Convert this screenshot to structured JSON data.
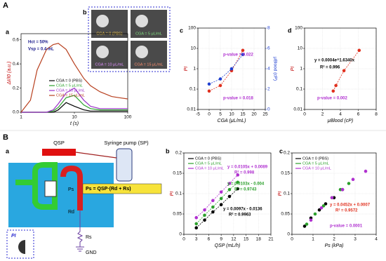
{
  "panel_labels": [
    "A",
    "a",
    "b",
    "c",
    "d",
    "B",
    "a",
    "b",
    "c"
  ],
  "images": [
    "CGA = 0 (PBS)",
    "CGA = 5 μL/mL",
    "CGA = 10 μL/mL",
    "CGA = 15 μL/mL"
  ],
  "diagram": {
    "flow": "QSP",
    "pump": "Syringe pump (SP)",
    "pressure": "Ps",
    "rd": "Rd",
    "rs": "Rs",
    "equation": "Ps = QSP·(Rd + Rs)",
    "pi": "PI",
    "ground": "GND"
  },
  "chart_data": [
    {
      "type": "line",
      "xlog": true,
      "x": [
        1,
        1.5,
        2,
        3,
        4,
        5,
        7,
        10,
        15,
        20,
        30,
        50,
        70,
        100
      ],
      "series": [
        {
          "name": "CGA = 0 (PBS)",
          "color": "#000000",
          "values": [
            0,
            0,
            0,
            0,
            0,
            0.02,
            0.08,
            0.05,
            0.02,
            0.01,
            0.01,
            0.01,
            0.01,
            0.01
          ]
        },
        {
          "name": "CGA = 5 μL/mL",
          "color": "#2ca02c",
          "values": [
            0,
            0,
            0,
            0,
            0.01,
            0.04,
            0.12,
            0.14,
            0.06,
            0.03,
            0.02,
            0.02,
            0.02,
            0.02
          ]
        },
        {
          "name": "CGA = 10 μL/mL",
          "color": "#9b30c8",
          "values": [
            0,
            0,
            0,
            0,
            0.02,
            0.07,
            0.16,
            0.2,
            0.1,
            0.05,
            0.03,
            0.03,
            0.03,
            0.03
          ]
        },
        {
          "name": "CGA = 15 μL/mL",
          "color": "#b8401f",
          "values": [
            0,
            0.1,
            0.35,
            0.52,
            0.56,
            0.57,
            0.52,
            0.4,
            0.28,
            0.22,
            0.17,
            0.13,
            0.12,
            0.11
          ]
        }
      ],
      "xlim": [
        1,
        100
      ],
      "xticks": [
        1,
        10,
        100
      ],
      "ylim": [
        0,
        0.65
      ],
      "yticks": [
        {
          "value": 0,
          "label": "0.0"
        },
        0.2,
        0.4,
        0.6
      ],
      "xlabel": "t (s)",
      "ylabel": "ΔI/I0 (a.u.)",
      "legend": true,
      "annotations": [
        {
          "text": "Hct = 50%",
          "color": "#1a1a8c"
        },
        {
          "text": "Vsp = 0.4 mL",
          "color": "#1a1a8c"
        }
      ]
    },
    {
      "type": "line",
      "x": [
        0,
        5,
        10,
        15
      ],
      "series": [
        {
          "color": "#e0301e",
          "values": [
            0.08,
            0.15,
            0.8,
            8
          ]
        },
        {
          "color": "#2040d0",
          "axis": "y2",
          "values": [
            2.5,
            3,
            4,
            5.4
          ]
        }
      ],
      "xlim": [
        -5,
        25
      ],
      "xticks": [
        -5,
        0,
        5,
        10,
        15,
        20,
        25
      ],
      "ylog": true,
      "ylim": [
        0.01,
        100
      ],
      "yticks": [
        0.01,
        0.1,
        1,
        10,
        100
      ],
      "y2lim": [
        0,
        8
      ],
      "y2ticks": [
        0,
        2,
        4,
        6,
        8
      ],
      "xlabel": "CGA (μL/mL)",
      "ylabel": "PI",
      "y2label": "μBlood (cP)",
      "grid": true,
      "annotations": [
        {
          "text": "p-value = 0.022",
          "color": "#b030d0"
        },
        {
          "text": "p-value = 0.018",
          "color": "#b030d0"
        }
      ]
    },
    {
      "type": "line",
      "x": [
        3.2,
        3.5,
        4.4,
        6.1
      ],
      "series": [
        {
          "color": "#e0301e",
          "values": [
            0.08,
            0.15,
            0.8,
            8
          ]
        }
      ],
      "xlim": [
        0,
        8
      ],
      "xticks": [
        0,
        2,
        4,
        6,
        8
      ],
      "ylog": true,
      "ylim": [
        0.01,
        100
      ],
      "yticks": [
        0.01,
        0.1,
        1,
        10,
        100
      ],
      "xlabel": "μBlood (cP)",
      "ylabel": "PI",
      "grid": true,
      "annotations": [
        {
          "text": "y = 0.0004e^1.6340x",
          "color": "#000000"
        },
        {
          "text": "R² = 0.996",
          "color": "#000000"
        },
        {
          "text": "p-value = 0.002",
          "color": "#b030d0"
        }
      ]
    },
    {
      "type": "line",
      "x": [
        3,
        5,
        7,
        9,
        11,
        13
      ],
      "series": [
        {
          "name": "CGA = 0 (PBS)",
          "color": "#000000",
          "values": [
            0.016,
            0.035,
            0.055,
            0.073,
            0.093,
            0.112
          ]
        },
        {
          "name": "CGA = 5 μL/mL",
          "color": "#2ca02c",
          "values": [
            0.026,
            0.047,
            0.067,
            0.088,
            0.11,
            0.128
          ]
        },
        {
          "name": "CGA = 10 μL/mL",
          "color": "#b030d0",
          "values": [
            0.041,
            0.06,
            0.083,
            0.104,
            0.125,
            0.146
          ]
        }
      ],
      "xlim": [
        0,
        21
      ],
      "xticks": [
        0,
        3,
        6,
        9,
        12,
        15,
        18,
        21
      ],
      "ylim": [
        0,
        0.2
      ],
      "yticks": [
        0,
        0.05,
        0.1,
        0.15,
        0.2
      ],
      "xlabel": "QSP (mL/h)",
      "ylabel": "PI",
      "grid": true,
      "legend": true,
      "annotations": [
        {
          "text": "y = 0.0105x + 0.0089",
          "color": "#b030d0"
        },
        {
          "text": "R² = 0.998",
          "color": "#b030d0"
        },
        {
          "text": "y = 0.0103x - 0.004",
          "color": "#2ca02c"
        },
        {
          "text": "R² = 0.9743",
          "color": "#2ca02c"
        },
        {
          "text": "y = 0.0097x - 0.0136",
          "color": "#000000"
        },
        {
          "text": "R² = 0.9963",
          "color": "#000000"
        }
      ]
    },
    {
      "type": "scatter",
      "series": [
        {
          "name": "CGA = 0 (PBS)",
          "color": "#000000",
          "x": [
            0.6,
            0.9,
            1.3,
            1.6,
            2.0,
            2.4
          ],
          "values": [
            0.02,
            0.04,
            0.06,
            0.075,
            0.09,
            0.11
          ]
        },
        {
          "name": "CGA = 5 μL/mL",
          "color": "#2ca02c",
          "x": [
            0.7,
            1.1,
            1.5,
            1.9,
            2.3,
            2.7
          ],
          "values": [
            0.025,
            0.05,
            0.07,
            0.09,
            0.11,
            0.125
          ]
        },
        {
          "name": "CGA = 10 μL/mL",
          "color": "#b030d0",
          "x": [
            0.9,
            1.4,
            1.9,
            2.4,
            2.9,
            3.5
          ],
          "values": [
            0.035,
            0.065,
            0.09,
            0.11,
            0.135,
            0.155
          ]
        }
      ],
      "xlim": [
        0,
        4
      ],
      "xticks": [
        0,
        1,
        2,
        3,
        4
      ],
      "ylim": [
        0,
        0.2
      ],
      "yticks": [
        0,
        0.05,
        0.1,
        0.15,
        0.2
      ],
      "xlabel": "Ps (kPa)",
      "ylabel": "PI",
      "grid": true,
      "legend": true,
      "annotations": [
        {
          "text": "y = 0.0452x + 0.0007",
          "color": "#e0301e"
        },
        {
          "text": "R² = 0.9572",
          "color": "#e0301e"
        },
        {
          "text": "p-value = 0.0001",
          "color": "#b030d0"
        }
      ]
    }
  ]
}
